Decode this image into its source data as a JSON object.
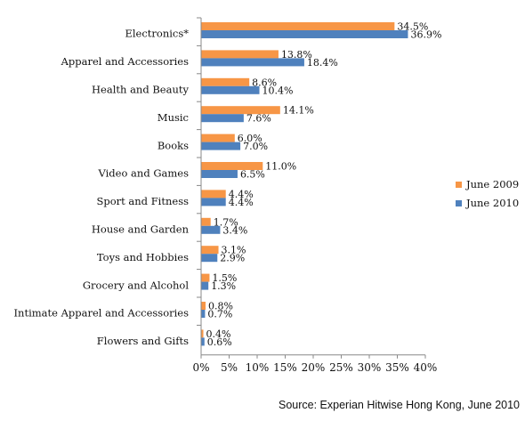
{
  "chart_data": {
    "type": "bar",
    "orientation": "horizontal",
    "categories": [
      "Electronics*",
      "Apparel and Accessories",
      "Health and Beauty",
      "Music",
      "Books",
      "Video and Games",
      "Sport and Fitness",
      "House and Garden",
      "Toys and Hobbies",
      "Grocery and Alcohol",
      "Intimate Apparel and Accessories",
      "Flowers and Gifts"
    ],
    "series": [
      {
        "name": "June 2009",
        "color": "#F79646",
        "values": [
          34.5,
          13.8,
          8.6,
          14.1,
          6.0,
          11.0,
          4.4,
          1.7,
          3.1,
          1.5,
          0.8,
          0.4
        ],
        "labels": [
          "34.5%",
          "13.8%",
          "8.6%",
          "14.1%",
          "6.0%",
          "11.0%",
          "4.4%",
          "1.7%",
          "3.1%",
          "1.5%",
          "0.8%",
          "0.4%"
        ]
      },
      {
        "name": "June 2010",
        "color": "#4F81BD",
        "values": [
          36.9,
          18.4,
          10.4,
          7.6,
          7.0,
          6.5,
          4.4,
          3.4,
          2.9,
          1.3,
          0.7,
          0.6
        ],
        "labels": [
          "36.9%",
          "18.4%",
          "10.4%",
          "7.6%",
          "7.0%",
          "6.5%",
          "4.4%",
          "3.4%",
          "2.9%",
          "1.3%",
          "0.7%",
          "0.6%"
        ]
      }
    ],
    "xlim": [
      0,
      40
    ],
    "xticks": [
      0,
      5,
      10,
      15,
      20,
      25,
      30,
      35,
      40
    ],
    "xtick_labels": [
      "0%",
      "5%",
      "10%",
      "15%",
      "20%",
      "25%",
      "30%",
      "35%",
      "40%"
    ],
    "grid": false,
    "legend_position": "right",
    "source": "Source: Experian Hitwise Hong Kong, June 2010"
  }
}
